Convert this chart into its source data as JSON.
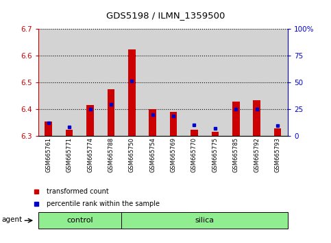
{
  "title": "GDS5198 / ILMN_1359500",
  "samples": [
    "GSM665761",
    "GSM665771",
    "GSM665774",
    "GSM665788",
    "GSM665750",
    "GSM665754",
    "GSM665769",
    "GSM665770",
    "GSM665775",
    "GSM665785",
    "GSM665792",
    "GSM665793"
  ],
  "red_values": [
    6.355,
    6.325,
    6.415,
    6.475,
    6.625,
    6.4,
    6.39,
    6.325,
    6.315,
    6.43,
    6.435,
    6.33
  ],
  "blue_values": [
    6.35,
    6.335,
    6.4,
    6.42,
    6.505,
    6.38,
    6.375,
    6.342,
    6.33,
    6.4,
    6.4,
    6.34
  ],
  "ylim_left": [
    6.3,
    6.7
  ],
  "ylim_right": [
    0,
    100
  ],
  "yticks_left": [
    6.3,
    6.4,
    6.5,
    6.6,
    6.7
  ],
  "yticks_right": [
    0,
    25,
    50,
    75,
    100
  ],
  "ytick_right_labels": [
    "0",
    "25",
    "50",
    "75",
    "100%"
  ],
  "bar_color": "#cc0000",
  "dot_color": "#0000cc",
  "baseline": 6.3,
  "bar_width": 0.35,
  "legend_items": [
    {
      "color": "#cc0000",
      "label": "transformed count"
    },
    {
      "color": "#0000cc",
      "label": "percentile rank within the sample"
    }
  ],
  "tick_color_left": "#cc0000",
  "tick_color_right": "#0000cc",
  "sample_bg": "#d3d3d3",
  "group_color": "#90ee90",
  "groups": [
    {
      "label": "control",
      "start": 0,
      "end": 3
    },
    {
      "label": "silica",
      "start": 4,
      "end": 11
    }
  ]
}
